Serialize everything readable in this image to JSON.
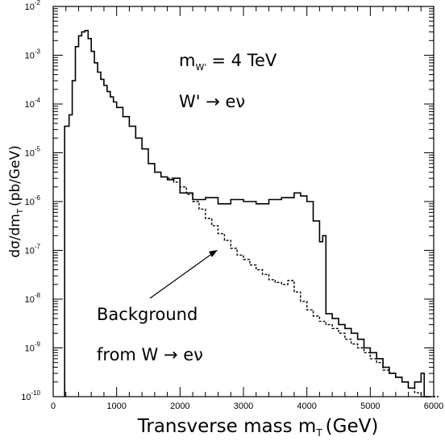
{
  "chart_data": {
    "type": "line",
    "xlabel": "Transverse mass m",
    "xlabel_sub": "T",
    "xlabel_unit": "(GeV)",
    "ylabel": "dσ/dm",
    "ylabel_sub": "T",
    "ylabel_unit": "(pb/GeV)",
    "xlim": [
      0,
      6000
    ],
    "ylim": [
      1e-10,
      0.01
    ],
    "y_scale": "log",
    "grid": false,
    "x_ticks": [
      "0",
      "1000",
      "2000",
      "3000",
      "4000",
      "5000",
      "6000"
    ],
    "y_tick_base": "10",
    "y_tick_exponents": [
      "-10",
      "-9",
      "-8",
      "-7",
      "-6",
      "-5",
      "-4",
      "-3",
      "-2"
    ],
    "annotations": {
      "mass_label": "m",
      "mass_sub": "W'",
      "mass_value": "= 4 TeV",
      "decay": "W' → eν",
      "background_line1": "Background",
      "background_line2": "from W → eν"
    },
    "series": [
      {
        "style": "solid",
        "x": [
          180,
          250,
          300,
          350,
          400,
          450,
          500,
          550,
          600,
          650,
          700,
          750,
          800,
          850,
          900,
          950,
          1000,
          1100,
          1200,
          1300,
          1400,
          1500,
          1600,
          1700,
          1800,
          1900,
          2000,
          2200,
          2400,
          2600,
          2800,
          3000,
          3200,
          3400,
          3600,
          3800,
          3900,
          4000,
          4100,
          4200,
          4250,
          4300,
          4400,
          4500,
          4600,
          4700,
          4800,
          4900,
          5000,
          5100,
          5200,
          5300,
          5400,
          5500,
          5600,
          5700,
          5800,
          5850
        ],
        "y": [
          3.5e-05,
          6e-05,
          0.0003,
          0.0015,
          0.0025,
          0.003,
          0.0032,
          0.0022,
          0.0012,
          0.0007,
          0.00045,
          0.00032,
          0.00024,
          0.00018,
          0.00014,
          0.00011,
          8.5e-05,
          5.5e-05,
          3.5e-05,
          2e-05,
          1.2e-05,
          6e-06,
          4e-06,
          3.2e-06,
          2.8e-06,
          3e-06,
          1.5e-06,
          1.1e-06,
          1.2e-06,
          9e-07,
          1.1e-06,
          1e-06,
          9e-07,
          1.1e-06,
          1.2e-06,
          1.5e-06,
          1.3e-06,
          1e-06,
          4e-07,
          1.5e-07,
          2e-07,
          5e-09,
          4e-09,
          3e-09,
          2.5e-09,
          2e-09,
          1.5e-09,
          1e-09,
          8e-10,
          6e-10,
          4e-10,
          3e-10,
          2.5e-10,
          2e-10,
          1.5e-10,
          2e-10,
          3e-10,
          1e-10
        ]
      },
      {
        "style": "dashed",
        "x": [
          1800,
          1900,
          2000,
          2100,
          2200,
          2300,
          2400,
          2500,
          2600,
          2700,
          2800,
          2900,
          3000,
          3100,
          3200,
          3300,
          3400,
          3500,
          3600,
          3700,
          3800,
          3900,
          4000,
          4100,
          4200,
          4300,
          4400,
          4500,
          4600,
          4700,
          4800,
          4900,
          5000,
          5100,
          5200,
          5300,
          5400,
          5500,
          5600,
          5700,
          5800,
          5900,
          6000
        ],
        "y": [
          3e-06,
          2.5e-06,
          2e-06,
          1.4e-06,
          1e-06,
          7e-07,
          4.5e-07,
          3.2e-07,
          2.2e-07,
          1.6e-07,
          1.1e-07,
          8e-08,
          6.5e-08,
          5e-08,
          4e-08,
          3.2e-08,
          2.5e-08,
          2.2e-08,
          2e-08,
          2.4e-08,
          1.4e-08,
          9e-09,
          6e-09,
          4.5e-09,
          3.5e-09,
          3e-09,
          2.5e-09,
          2e-09,
          1.5e-09,
          1.2e-09,
          1e-09,
          8e-10,
          6e-10,
          5e-10,
          3.5e-10,
          3e-10,
          2.5e-10,
          2e-10,
          1.5e-10,
          1.2e-10,
          1e-10,
          1e-10,
          1e-10
        ]
      }
    ]
  }
}
